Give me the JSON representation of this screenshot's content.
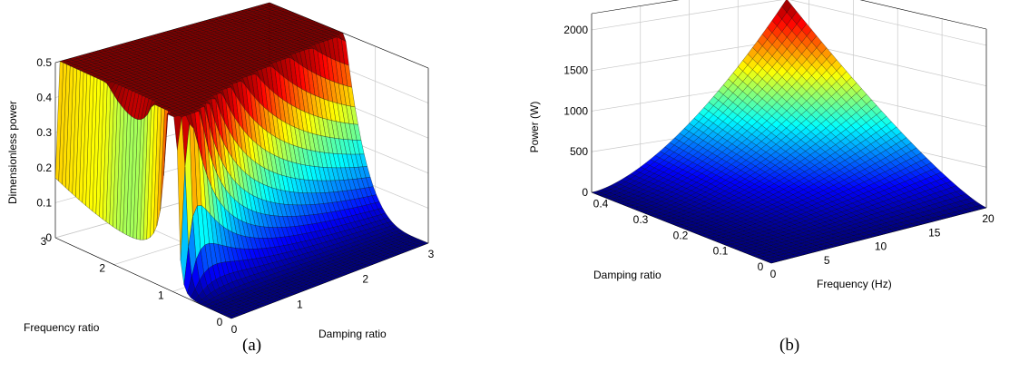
{
  "chart_data": [
    {
      "type": "surface",
      "caption": "(a)",
      "zlabel": "Dimensionless power",
      "xlabel": "Frequency ratio",
      "ylabel": "Damping ratio",
      "x_ticks": [
        "0",
        "1",
        "2",
        "3"
      ],
      "y_ticks": [
        "0",
        "1",
        "2",
        "3"
      ],
      "z_ticks": [
        "0",
        "0.1",
        "0.2",
        "0.3",
        "0.4",
        "0.5"
      ],
      "xlim": [
        0,
        3
      ],
      "ylim": [
        0,
        3
      ],
      "zlim": [
        0,
        0.5
      ],
      "grid": true,
      "colormap": "jet",
      "model": "P = ζ r^6 / ((1 - r^2)^2 + (2 ζ r)^2)"
    },
    {
      "type": "surface",
      "caption": "(b)",
      "zlabel": "Power (W)",
      "xlabel": "Frequency (Hz)",
      "ylabel": "Damping ratio",
      "x_ticks": [
        "0",
        "5",
        "10",
        "15",
        "20"
      ],
      "y_ticks": [
        "0",
        "0.1",
        "0.2",
        "0.3",
        "0.4"
      ],
      "z_ticks": [
        "0",
        "500",
        "1000",
        "1500",
        "2000"
      ],
      "xlim": [
        0,
        20
      ],
      "ylim": [
        0,
        0.45
      ],
      "zlim": [
        0,
        2200
      ],
      "peak": {
        "frequency": 20,
        "damping": 0.45,
        "power": 2000
      },
      "grid": true,
      "colormap": "jet"
    }
  ]
}
